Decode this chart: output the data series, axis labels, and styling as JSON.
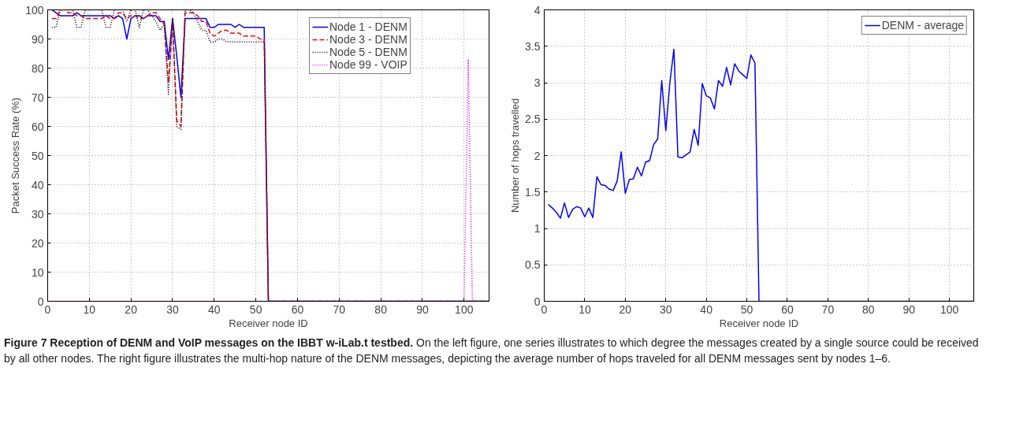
{
  "chart_data": [
    {
      "type": "line",
      "xlabel": "Receiver node ID",
      "ylabel": "Packet Success Rate (%)",
      "xlim": [
        0,
        106
      ],
      "ylim": [
        0,
        100
      ],
      "xticks": [
        0,
        10,
        20,
        30,
        40,
        50,
        60,
        70,
        80,
        90,
        100
      ],
      "yticks": [
        0,
        10,
        20,
        30,
        40,
        50,
        60,
        70,
        80,
        90,
        100
      ],
      "grid": true,
      "legend": "top right",
      "series": [
        {
          "name": "Node 1 - DENM",
          "color": "#0000ff",
          "line_style": "solid",
          "x": [
            1,
            2,
            3,
            4,
            5,
            6,
            7,
            8,
            9,
            10,
            11,
            12,
            13,
            14,
            15,
            16,
            17,
            18,
            19,
            20,
            21,
            22,
            23,
            24,
            25,
            26,
            27,
            28,
            29,
            30,
            31,
            32,
            33,
            34,
            35,
            36,
            37,
            38,
            39,
            40,
            41,
            42,
            43,
            44,
            45,
            46,
            47,
            48,
            49,
            50,
            51,
            52,
            53,
            106
          ],
          "values": [
            100,
            99,
            98,
            98,
            98,
            98,
            99,
            98,
            98,
            98,
            98,
            98,
            98,
            98,
            98,
            97,
            98,
            97,
            90,
            97,
            98,
            98,
            97,
            98,
            98,
            98,
            96,
            96,
            83,
            97,
            84,
            70,
            97,
            97,
            97,
            97,
            97,
            97,
            94,
            94,
            95,
            95,
            95,
            95,
            94,
            95,
            94,
            94,
            94,
            94,
            94,
            94,
            0,
            0
          ]
        },
        {
          "name": "Node 3 - DENM",
          "color": "#ff0000",
          "line_style": "dashed",
          "x": [
            1,
            2,
            3,
            4,
            5,
            6,
            7,
            8,
            9,
            10,
            11,
            12,
            13,
            14,
            15,
            16,
            17,
            18,
            19,
            20,
            21,
            22,
            23,
            24,
            25,
            26,
            27,
            28,
            29,
            30,
            31,
            32,
            33,
            34,
            35,
            36,
            37,
            38,
            39,
            40,
            41,
            42,
            43,
            44,
            45,
            46,
            47,
            48,
            49,
            50,
            51,
            52,
            53,
            106
          ],
          "values": [
            97,
            97,
            100,
            100,
            99,
            99,
            98,
            98,
            97,
            97,
            97,
            97,
            97,
            98,
            97,
            97,
            99,
            99,
            97,
            98,
            98,
            97,
            97,
            98,
            99,
            99,
            97,
            95,
            75,
            96,
            62,
            60,
            99,
            99,
            99,
            98,
            96,
            96,
            92,
            91,
            92,
            93,
            93,
            92,
            92,
            92,
            91,
            91,
            91,
            91,
            90,
            90,
            0,
            0
          ]
        },
        {
          "name": "Node 5 - DENM",
          "color": "#000000",
          "line_style": "dotted",
          "x": [
            1,
            2,
            3,
            4,
            5,
            6,
            7,
            8,
            9,
            10,
            11,
            12,
            13,
            14,
            15,
            16,
            17,
            18,
            19,
            20,
            21,
            22,
            23,
            24,
            25,
            26,
            27,
            28,
            29,
            30,
            31,
            32,
            33,
            34,
            35,
            36,
            37,
            38,
            39,
            40,
            41,
            42,
            43,
            44,
            45,
            46,
            47,
            48,
            49,
            50,
            51,
            52,
            53,
            106
          ],
          "values": [
            94,
            94,
            100,
            100,
            100,
            100,
            94,
            94,
            100,
            100,
            100,
            100,
            100,
            94,
            94,
            100,
            100,
            100,
            96,
            100,
            100,
            94,
            100,
            100,
            98,
            96,
            93,
            95,
            71,
            97,
            60,
            59,
            100,
            100,
            99,
            96,
            93,
            93,
            89,
            89,
            90,
            90,
            89,
            89,
            89,
            89,
            89,
            89,
            89,
            89,
            89,
            89,
            0,
            0
          ]
        },
        {
          "name": "Node 99 - VOIP",
          "color": "#ff00ff",
          "line_style": "dotted",
          "x": [
            0,
            100,
            101,
            102,
            106
          ],
          "values": [
            0,
            0,
            83,
            0,
            0
          ]
        }
      ]
    },
    {
      "type": "line",
      "xlabel": "Receiver node ID",
      "ylabel": "Number of hops travelled",
      "xlim": [
        0,
        106
      ],
      "ylim": [
        0,
        4
      ],
      "xticks": [
        0,
        10,
        20,
        30,
        40,
        50,
        60,
        70,
        80,
        90,
        100
      ],
      "yticks": [
        0,
        0.5,
        1,
        1.5,
        2,
        2.5,
        3,
        3.5,
        4
      ],
      "grid": true,
      "legend": "top right",
      "annotations": [
        "Figure 7 Reception of DENM and VoIP messages on the IBBT w-iLab.t testbed.",
        "On the left figure, one series illustrates to which degree the messages created by a single source could be received by all other nodes. The right figure illustrates the multi-hop nature of the DENM messages, depicting the average number of hops traveled for all DENM messages sent by nodes 1–6."
      ],
      "series": [
        {
          "name": "DENM - average",
          "color": "#0000ff",
          "line_style": "solid",
          "x": [
            1,
            2,
            3,
            4,
            5,
            6,
            7,
            8,
            9,
            10,
            11,
            12,
            13,
            14,
            15,
            16,
            17,
            18,
            19,
            20,
            21,
            22,
            23,
            24,
            25,
            26,
            27,
            28,
            29,
            30,
            31,
            32,
            33,
            34,
            35,
            36,
            37,
            38,
            39,
            40,
            41,
            42,
            43,
            44,
            45,
            46,
            47,
            48,
            49,
            50,
            51,
            52,
            53,
            106
          ],
          "values": [
            1.33,
            1.28,
            1.22,
            1.14,
            1.35,
            1.15,
            1.26,
            1.3,
            1.28,
            1.16,
            1.28,
            1.15,
            1.71,
            1.6,
            1.59,
            1.54,
            1.52,
            1.65,
            2.05,
            1.48,
            1.67,
            1.68,
            1.84,
            1.72,
            1.91,
            1.93,
            2.15,
            2.23,
            3.03,
            2.34,
            3.0,
            3.46,
            1.98,
            1.97,
            2.01,
            2.05,
            2.36,
            2.14,
            2.99,
            2.82,
            2.79,
            2.64,
            3.03,
            2.95,
            3.21,
            2.97,
            3.26,
            3.16,
            3.11,
            3.06,
            3.38,
            3.27,
            0,
            0
          ]
        }
      ]
    }
  ]
}
